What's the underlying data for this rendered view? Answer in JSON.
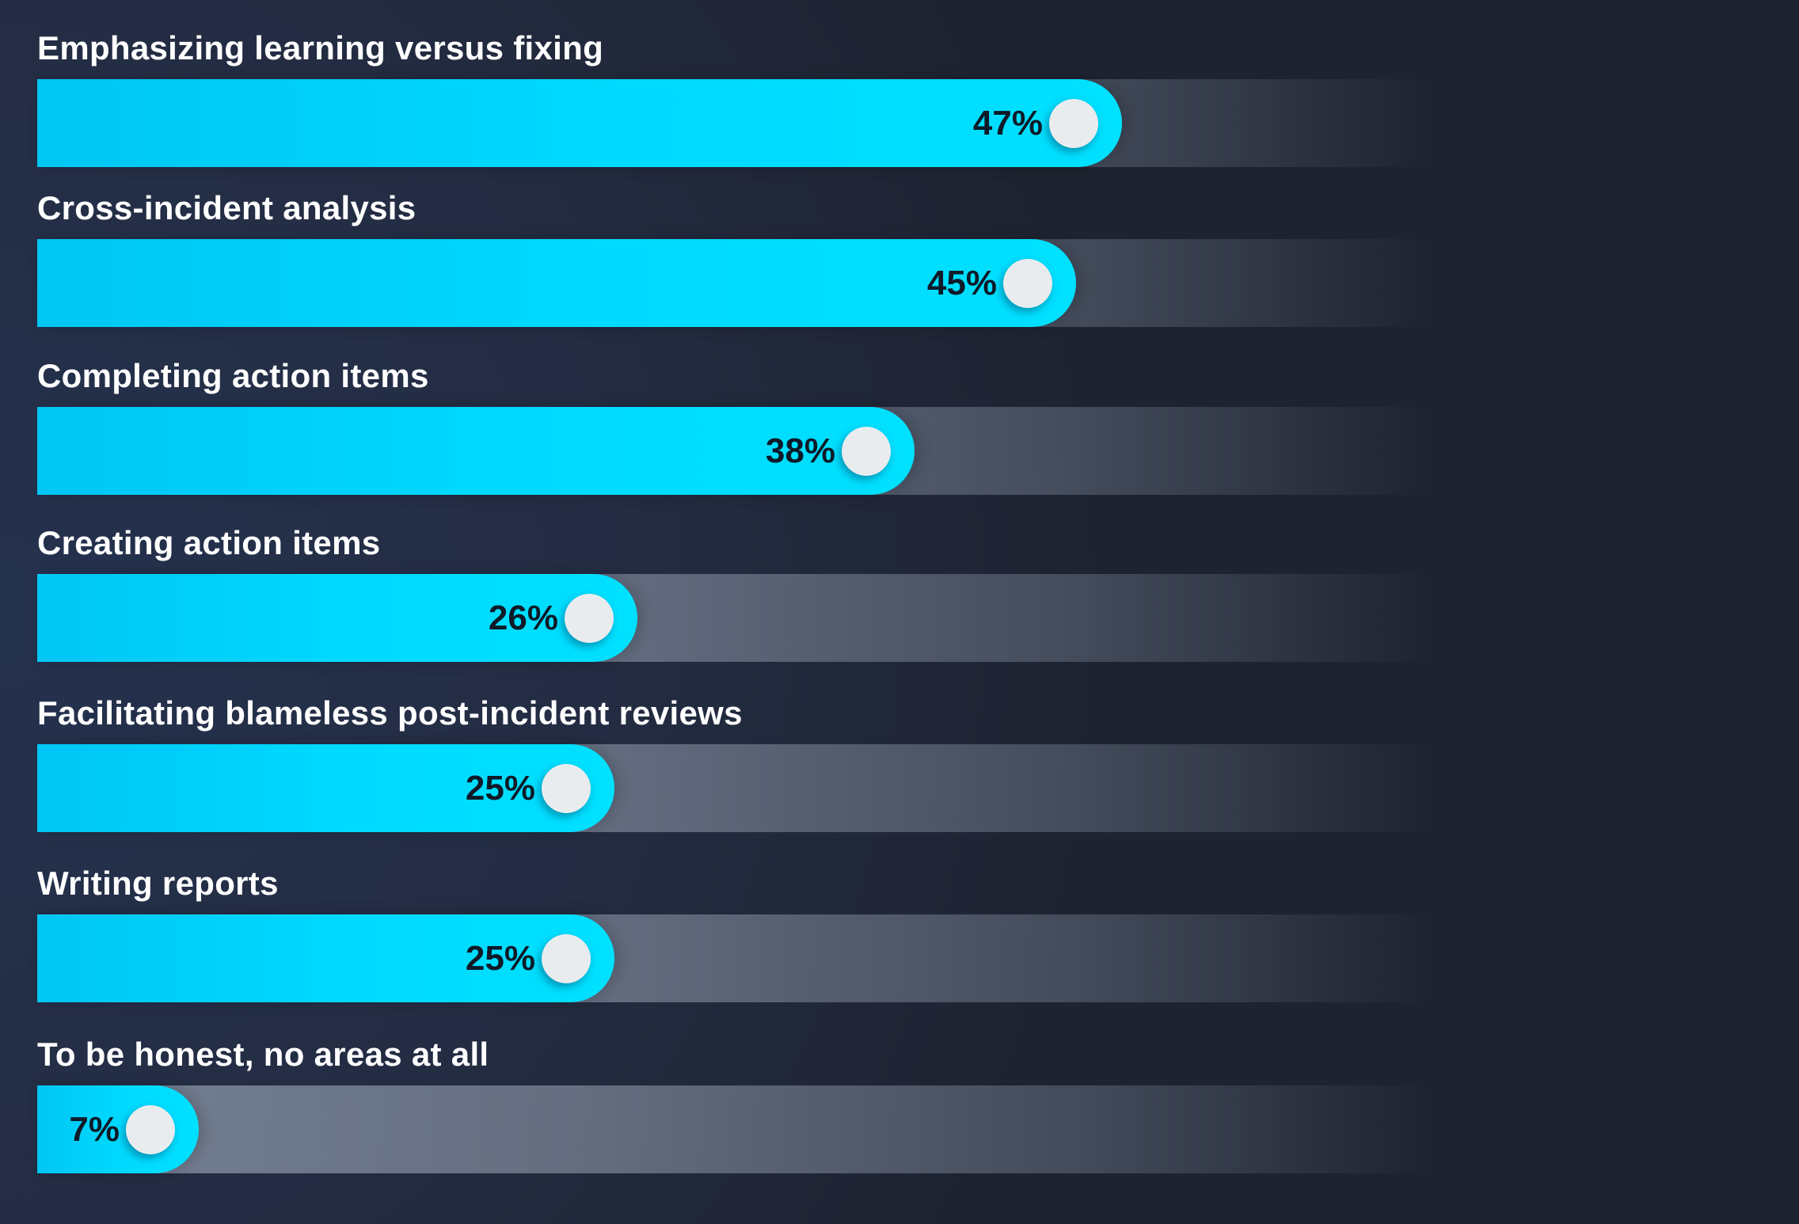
{
  "chart_data": {
    "type": "bar",
    "orientation": "horizontal",
    "title": "",
    "xlabel": "",
    "ylabel": "",
    "xlim": [
      0,
      65
    ],
    "grid": false,
    "legend": "none",
    "categories": [
      "Emphasizing learning versus fixing",
      "Cross-incident analysis",
      "Completing action items",
      "Creating action items",
      "Facilitating blameless post-incident reviews",
      "Writing reports",
      "To be honest, no areas at all"
    ],
    "values": [
      47,
      45,
      38,
      26,
      25,
      25,
      7
    ],
    "value_labels": [
      "47%",
      "45%",
      "38%",
      "26%",
      "25%",
      "25%",
      "7%"
    ],
    "colors": {
      "bar": "#00daff",
      "track": "#8c98aa",
      "knob": "#e9ecef",
      "value_text": "#0e1a28",
      "label_text": "#ffffff",
      "background": "#232c42"
    }
  }
}
